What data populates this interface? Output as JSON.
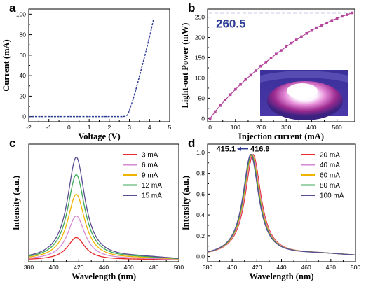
{
  "chart_data": [
    {
      "panel": "a",
      "type": "line",
      "xlabel": "Voltage (V)",
      "ylabel": "Current (mA)",
      "xlim": [
        -2,
        5
      ],
      "ylim": [
        -5,
        105
      ],
      "xticks": [
        -2,
        -1,
        0,
        1,
        2,
        3,
        4,
        5
      ],
      "yticks": [
        0,
        20,
        40,
        60,
        80,
        100
      ],
      "color": "#2f3c96",
      "line_style": "dashed",
      "x": [
        -2,
        -1,
        0,
        1,
        2,
        2.6,
        2.8,
        2.9,
        3.0,
        3.2,
        3.4,
        3.6,
        3.8,
        4.0,
        4.2
      ],
      "y": [
        0,
        0,
        0,
        0,
        0,
        0,
        0.3,
        1.5,
        6,
        18,
        32,
        47,
        62,
        78,
        95
      ]
    },
    {
      "panel": "b",
      "type": "line",
      "xlabel": "Injection current (mA)",
      "ylabel": "Light-out Power (mW)",
      "xlim": [
        -10,
        570
      ],
      "ylim": [
        -8,
        270
      ],
      "xticks": [
        0,
        100,
        200,
        300,
        400,
        500
      ],
      "yticks": [
        0,
        50,
        100,
        150,
        200,
        250
      ],
      "color": "#b4459b",
      "marker": "square",
      "x": [
        0,
        20,
        40,
        60,
        80,
        100,
        120,
        140,
        160,
        180,
        200,
        220,
        240,
        260,
        280,
        300,
        320,
        340,
        360,
        380,
        400,
        420,
        440,
        460,
        480,
        500,
        520,
        540,
        560
      ],
      "y": [
        0,
        17,
        32,
        46,
        59,
        72,
        84,
        96,
        107,
        118,
        129,
        139,
        149,
        159,
        168,
        177,
        186,
        194,
        202,
        210,
        217,
        224,
        230,
        236,
        242,
        247,
        252,
        256,
        260.5
      ],
      "max_value_label": "260.5",
      "max_line_value": 260.5,
      "max_line_color": "#2f3c96",
      "inset": "photo of glowing LED chip (magenta emission)"
    },
    {
      "panel": "c",
      "type": "line",
      "xlabel": "Wavelength (nm)",
      "ylabel": "Intensity (a.u.)",
      "xlim": [
        380,
        500
      ],
      "xticks": [
        380,
        400,
        420,
        440,
        460,
        480,
        500
      ],
      "ylim": [
        0,
        1.12
      ],
      "peak_wavelength": 418,
      "legend_position": "top-right",
      "series": [
        {
          "name": "3 mA",
          "color": "#e8282a",
          "peak": 0.22
        },
        {
          "name": "6 mA",
          "color": "#d48ad2",
          "peak": 0.43
        },
        {
          "name": "9 mA",
          "color": "#f0b400",
          "peak": 0.64
        },
        {
          "name": "12 mA",
          "color": "#3caa58",
          "peak": 0.83
        },
        {
          "name": "15 mA",
          "color": "#5a4d91",
          "peak": 1.0
        }
      ]
    },
    {
      "panel": "d",
      "type": "line",
      "xlabel": "Wavelength (nm)",
      "ylabel": "Intensity (a.u.)",
      "xlim": [
        380,
        500
      ],
      "xticks": [
        380,
        400,
        420,
        440,
        460,
        480,
        500
      ],
      "ylim": [
        -0.05,
        1.08
      ],
      "yticks": [
        0.0,
        0.2,
        0.4,
        0.6,
        0.8,
        1.0
      ],
      "legend_position": "top-right",
      "peak_shift_from": "416.9",
      "peak_shift_to": "415.1",
      "series": [
        {
          "name": "20 mA",
          "color": "#e8282a",
          "peak_wavelength": 416.9
        },
        {
          "name": "40 mA",
          "color": "#d48ad2",
          "peak_wavelength": 416.4
        },
        {
          "name": "60 mA",
          "color": "#f0b400",
          "peak_wavelength": 415.9
        },
        {
          "name": "80 mA",
          "color": "#3caa58",
          "peak_wavelength": 415.5
        },
        {
          "name": "100 mA",
          "color": "#5a4d91",
          "peak_wavelength": 415.1
        }
      ]
    }
  ],
  "panel_letters": [
    "a",
    "b",
    "c",
    "d"
  ]
}
